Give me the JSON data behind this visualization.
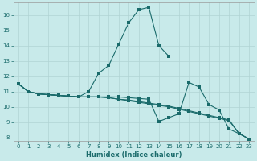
{
  "xlabel": "Humidex (Indice chaleur)",
  "background_color": "#c8eaea",
  "grid_color": "#b0d4d4",
  "line_color": "#1a6b6b",
  "xlim": [
    -0.5,
    23.5
  ],
  "ylim": [
    7.8,
    16.8
  ],
  "yticks": [
    8,
    9,
    10,
    11,
    12,
    13,
    14,
    15,
    16
  ],
  "xticks": [
    0,
    1,
    2,
    3,
    4,
    5,
    6,
    7,
    8,
    9,
    10,
    11,
    12,
    13,
    14,
    15,
    16,
    17,
    18,
    19,
    20,
    21,
    22,
    23
  ],
  "s1_x": [
    0,
    1,
    2,
    3,
    4,
    5,
    6,
    7,
    8,
    9,
    10,
    11,
    12,
    13,
    14,
    15
  ],
  "s1_y": [
    11.5,
    11.0,
    10.85,
    10.8,
    10.75,
    10.7,
    10.65,
    11.0,
    12.2,
    12.7,
    14.1,
    15.5,
    16.35,
    16.5,
    14.0,
    13.3
  ],
  "s2_x": [
    0,
    1,
    2,
    3,
    4,
    5,
    6,
    7,
    8,
    9,
    10,
    11,
    12,
    13,
    14,
    15,
    16,
    17,
    18,
    19,
    20,
    21,
    22,
    23
  ],
  "s2_y": [
    11.5,
    11.0,
    10.85,
    10.8,
    10.75,
    10.7,
    10.65,
    10.65,
    10.65,
    10.65,
    10.65,
    10.6,
    10.55,
    10.5,
    9.05,
    9.3,
    9.55,
    11.6,
    11.3,
    10.15,
    9.8,
    8.55,
    8.25,
    7.9
  ],
  "s3_x": [
    0,
    1,
    2,
    3,
    4,
    5,
    6,
    7,
    8,
    9,
    10,
    11,
    12,
    13,
    14,
    15,
    16,
    17,
    18,
    19,
    20,
    21,
    22,
    23
  ],
  "s3_y": [
    11.5,
    11.0,
    10.85,
    10.8,
    10.75,
    10.7,
    10.65,
    10.65,
    10.65,
    10.6,
    10.5,
    10.45,
    10.35,
    10.25,
    10.15,
    10.05,
    9.9,
    9.75,
    9.6,
    9.45,
    9.3,
    9.15,
    8.25,
    7.9
  ],
  "s4_x": [
    0,
    1,
    2,
    3,
    4,
    5,
    6,
    7,
    8,
    9,
    10,
    11,
    12,
    13,
    14,
    15,
    16,
    17,
    18,
    19,
    20,
    21,
    22,
    23
  ],
  "s4_y": [
    11.5,
    11.0,
    10.85,
    10.8,
    10.75,
    10.7,
    10.65,
    10.65,
    10.65,
    10.6,
    10.5,
    10.4,
    10.3,
    10.2,
    10.1,
    10.0,
    9.85,
    9.7,
    9.55,
    9.4,
    9.25,
    9.1,
    8.25,
    7.9
  ]
}
